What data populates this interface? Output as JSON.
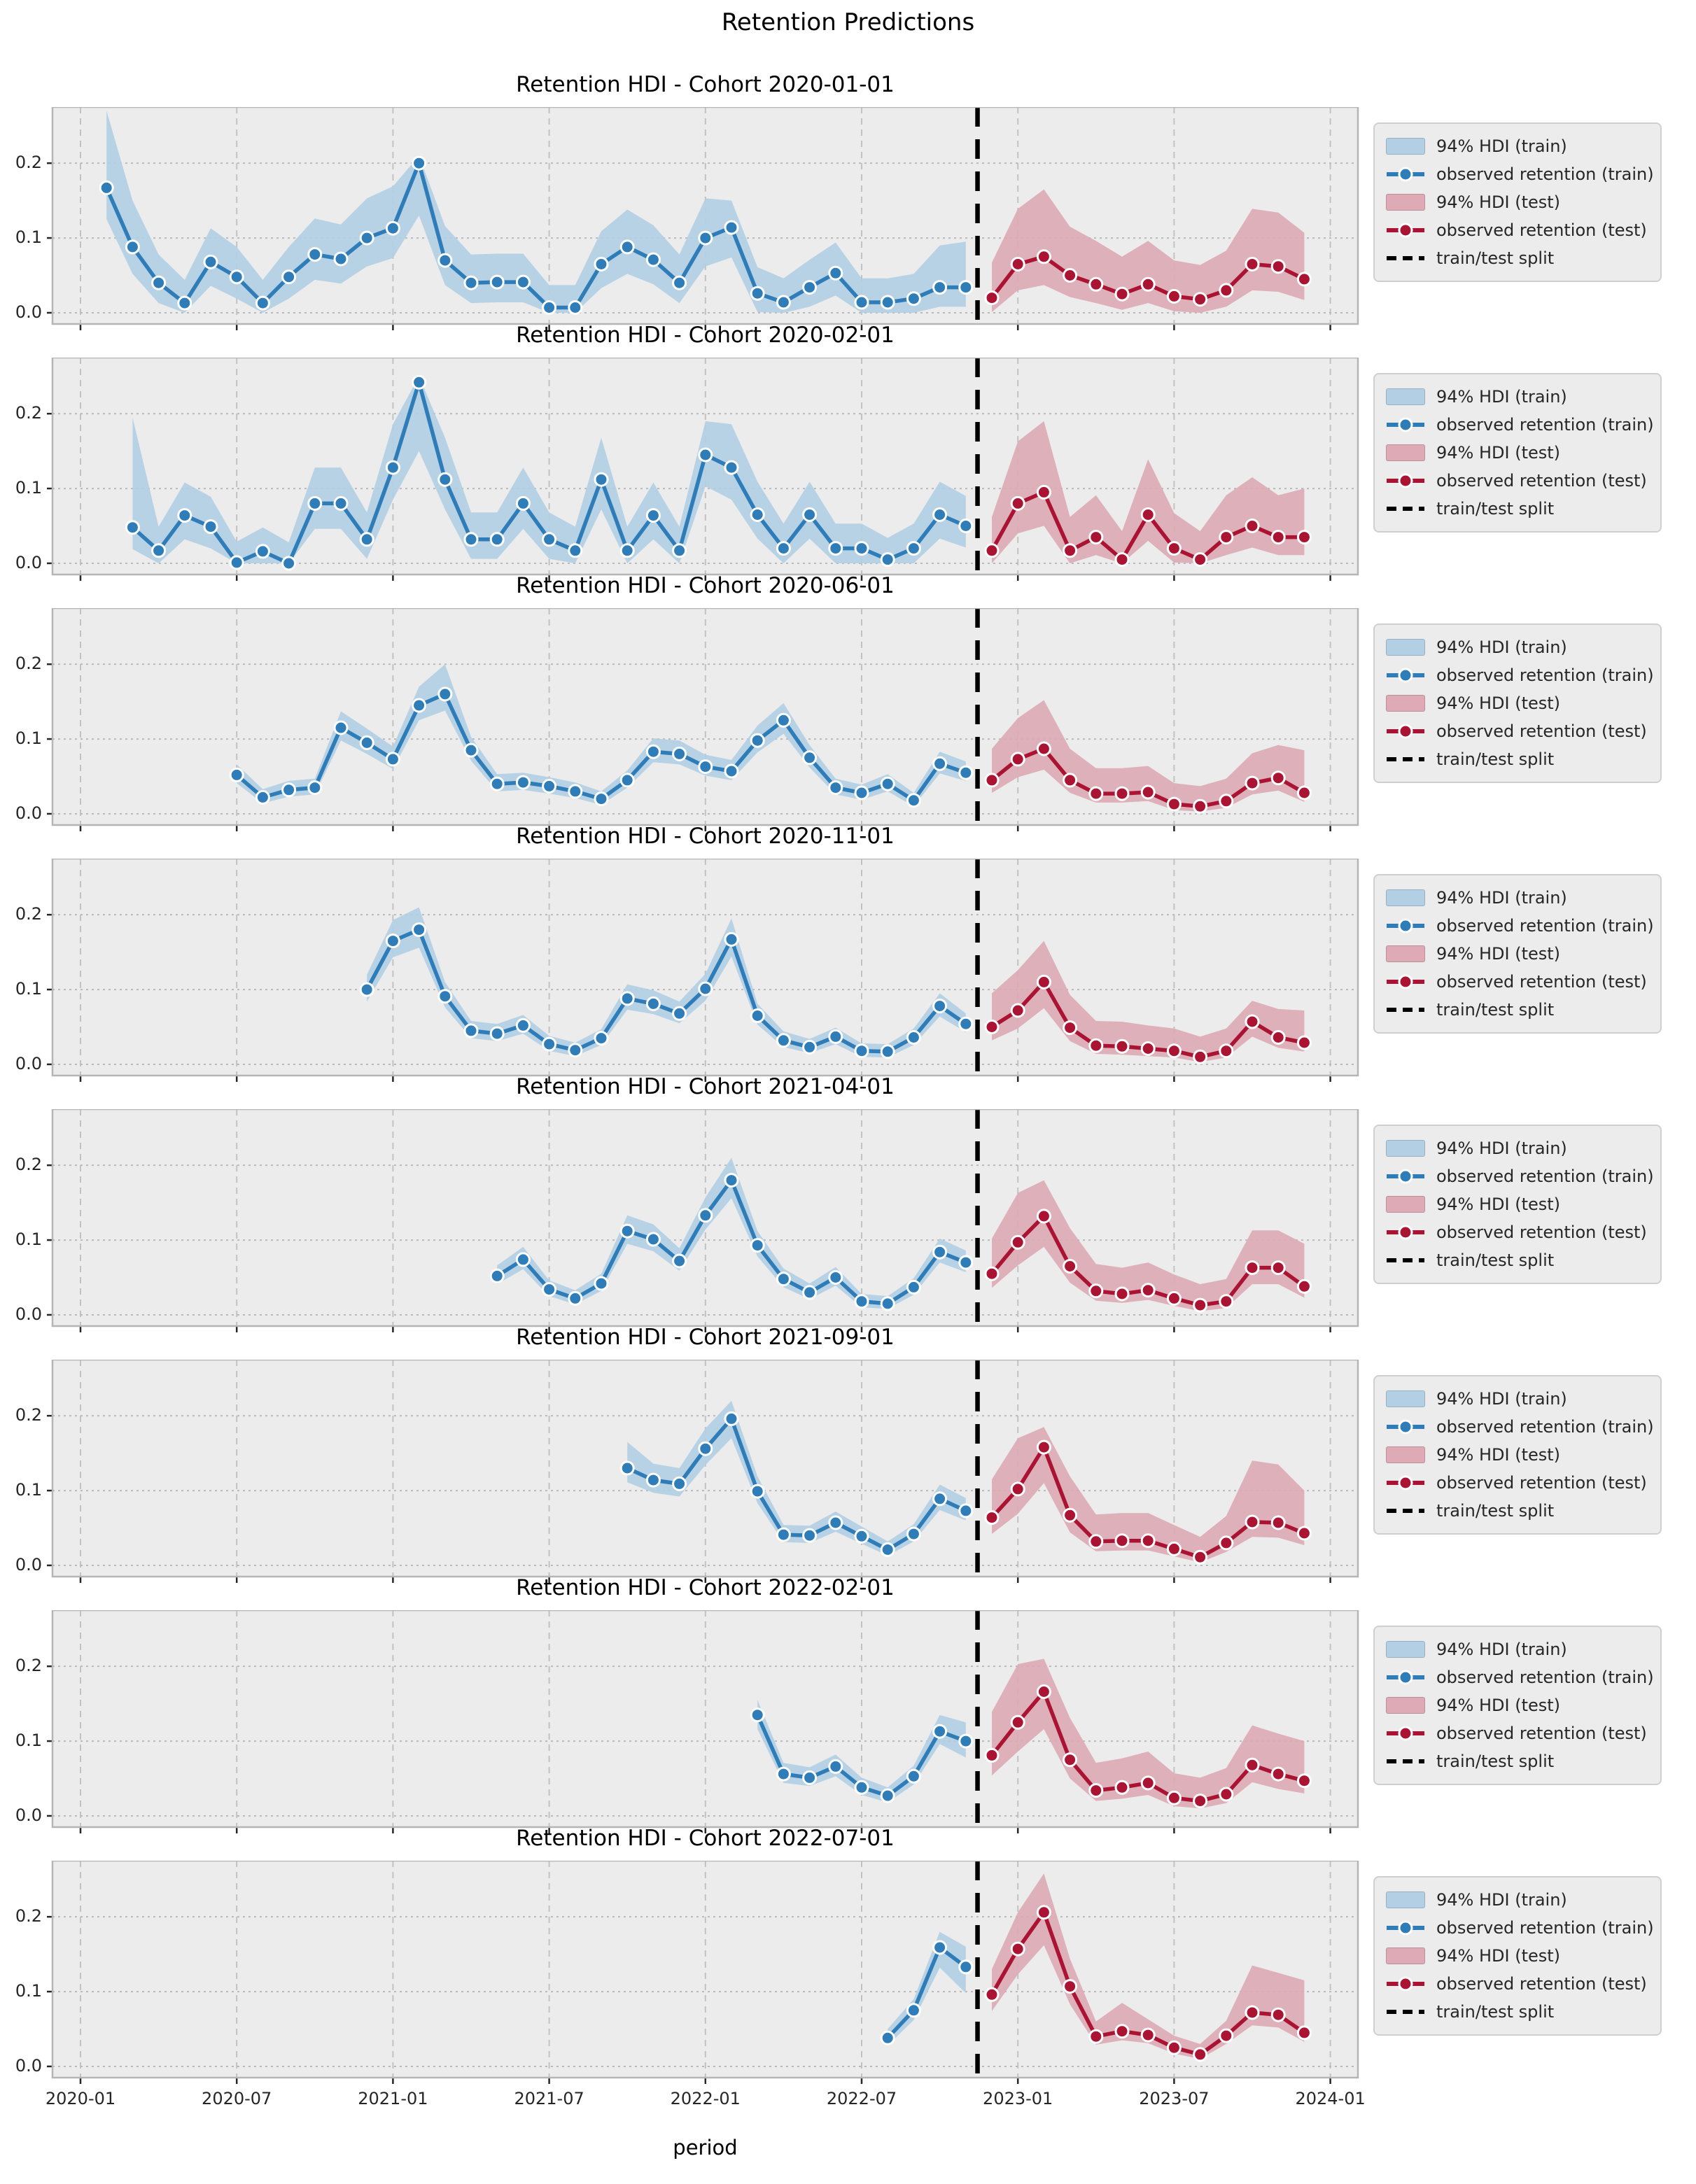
{
  "figure": {
    "suptitle": "Retention Predictions",
    "xlabel": "period",
    "axes": {
      "x_tick_labels": [
        "2020-01",
        "2020-07",
        "2021-01",
        "2021-07",
        "2022-01",
        "2022-07",
        "2023-01",
        "2023-07",
        "2024-01"
      ],
      "y_tick_labels": [
        "0.0",
        "0.1",
        "0.2"
      ],
      "y_tick_values": [
        0.0,
        0.1,
        0.2
      ],
      "ylim": [
        -0.015,
        0.275
      ],
      "grid": true,
      "background": "#ececec"
    },
    "legend_items": [
      {
        "label": "94% HDI (train)",
        "swatch": "band-train"
      },
      {
        "label": "observed retention (train)",
        "swatch": "line-train"
      },
      {
        "label": "94% HDI (test)",
        "swatch": "band-test"
      },
      {
        "label": "observed retention (test)",
        "swatch": "line-test"
      },
      {
        "label": "train/test split",
        "swatch": "dashed-split"
      }
    ],
    "colors": {
      "train_line": "#2e7cb8",
      "train_band": "#b3cfe4",
      "test_line": "#ab1332",
      "test_band": "#ddaab5",
      "split_line": "#000000",
      "grid_line": "#c2c2c2",
      "axes_background": "#ececec"
    }
  },
  "chart_data": [
    {
      "type": "line",
      "title": "Retention HDI - Cohort 2020-01-01",
      "cohort": "2020-01-01",
      "split_between": [
        "2022-11",
        "2022-12"
      ],
      "train": {
        "start": "2020-02",
        "retention": [
          0.167,
          0.088,
          0.04,
          0.013,
          0.068,
          0.048,
          0.013,
          0.048,
          0.078,
          0.072,
          0.1,
          0.113,
          0.2,
          0.07,
          0.04,
          0.041,
          0.041,
          0.007,
          0.007,
          0.065,
          0.088,
          0.071,
          0.04,
          0.1,
          0.114,
          0.026,
          0.014,
          0.034,
          0.053,
          0.014,
          0.014,
          0.019,
          0.034,
          0.034
        ],
        "hdi_upper": [
          0.27,
          0.15,
          0.078,
          0.044,
          0.113,
          0.088,
          0.044,
          0.088,
          0.126,
          0.118,
          0.153,
          0.169,
          0.21,
          0.116,
          0.078,
          0.079,
          0.079,
          0.037,
          0.037,
          0.109,
          0.138,
          0.117,
          0.078,
          0.153,
          0.15,
          0.061,
          0.046,
          0.071,
          0.094,
          0.046,
          0.046,
          0.052,
          0.09,
          0.095
        ],
        "hdi_lower": [
          0.125,
          0.052,
          0.013,
          0.0,
          0.036,
          0.019,
          0.0,
          0.019,
          0.044,
          0.039,
          0.062,
          0.073,
          0.13,
          0.037,
          0.013,
          0.014,
          0.014,
          0.0,
          0.0,
          0.033,
          0.052,
          0.038,
          0.013,
          0.062,
          0.074,
          0.001,
          0.0,
          0.008,
          0.023,
          0.0,
          0.0,
          0.0,
          0.008,
          0.008
        ]
      },
      "test": {
        "start": "2022-12",
        "retention": [
          0.02,
          0.065,
          0.075,
          0.05,
          0.038,
          0.025,
          0.038,
          0.022,
          0.018,
          0.03,
          0.065,
          0.062,
          0.045
        ],
        "hdi_upper": [
          0.067,
          0.139,
          0.165,
          0.115,
          0.096,
          0.075,
          0.096,
          0.07,
          0.064,
          0.083,
          0.139,
          0.134,
          0.107
        ],
        "hdi_lower": [
          0.001,
          0.03,
          0.037,
          0.021,
          0.013,
          0.004,
          0.013,
          0.002,
          0.0,
          0.008,
          0.03,
          0.028,
          0.017
        ]
      }
    },
    {
      "type": "line",
      "title": "Retention HDI - Cohort 2020-02-01",
      "cohort": "2020-02-01",
      "split_between": [
        "2022-11",
        "2022-12"
      ],
      "train": {
        "start": "2020-03",
        "retention": [
          0.048,
          0.017,
          0.064,
          0.049,
          0.001,
          0.016,
          0.0,
          0.08,
          0.08,
          0.032,
          0.128,
          0.242,
          0.112,
          0.032,
          0.032,
          0.08,
          0.032,
          0.017,
          0.112,
          0.017,
          0.064,
          0.017,
          0.145,
          0.128,
          0.065,
          0.02,
          0.065,
          0.02,
          0.02,
          0.005,
          0.02,
          0.065,
          0.05
        ],
        "hdi_upper": [
          0.195,
          0.049,
          0.108,
          0.089,
          0.029,
          0.048,
          0.028,
          0.128,
          0.128,
          0.068,
          0.186,
          0.25,
          0.168,
          0.068,
          0.068,
          0.128,
          0.068,
          0.049,
          0.168,
          0.049,
          0.108,
          0.049,
          0.19,
          0.186,
          0.109,
          0.053,
          0.109,
          0.053,
          0.053,
          0.034,
          0.053,
          0.109,
          0.09
        ],
        "hdi_lower": [
          0.019,
          0.0,
          0.032,
          0.02,
          0.0,
          0.0,
          0.0,
          0.046,
          0.046,
          0.006,
          0.085,
          0.15,
          0.072,
          0.006,
          0.006,
          0.046,
          0.006,
          0.0,
          0.072,
          0.0,
          0.032,
          0.0,
          0.103,
          0.085,
          0.033,
          0.0,
          0.033,
          0.0,
          0.0,
          0.0,
          0.0,
          0.033,
          0.021
        ]
      },
      "test": {
        "start": "2022-12",
        "retention": [
          0.017,
          0.08,
          0.095,
          0.017,
          0.035,
          0.005,
          0.065,
          0.02,
          0.005,
          0.035,
          0.05,
          0.035,
          0.035
        ],
        "hdi_upper": [
          0.062,
          0.163,
          0.19,
          0.062,
          0.091,
          0.043,
          0.139,
          0.067,
          0.043,
          0.091,
          0.115,
          0.091,
          0.1
        ],
        "hdi_lower": [
          0.0,
          0.04,
          0.05,
          0.0,
          0.011,
          0.0,
          0.03,
          0.001,
          0.0,
          0.011,
          0.021,
          0.011,
          0.011
        ]
      }
    },
    {
      "type": "line",
      "title": "Retention HDI - Cohort 2020-06-01",
      "cohort": "2020-06-01",
      "split_between": [
        "2022-11",
        "2022-12"
      ],
      "train": {
        "start": "2020-07",
        "retention": [
          0.052,
          0.022,
          0.032,
          0.035,
          0.115,
          0.095,
          0.073,
          0.145,
          0.16,
          0.085,
          0.04,
          0.042,
          0.037,
          0.03,
          0.02,
          0.045,
          0.083,
          0.08,
          0.063,
          0.057,
          0.098,
          0.125,
          0.075,
          0.035,
          0.028,
          0.04,
          0.018,
          0.067,
          0.055
        ],
        "hdi_upper": [
          0.066,
          0.033,
          0.044,
          0.047,
          0.137,
          0.114,
          0.09,
          0.17,
          0.2,
          0.103,
          0.053,
          0.055,
          0.049,
          0.042,
          0.03,
          0.058,
          0.101,
          0.098,
          0.079,
          0.072,
          0.118,
          0.148,
          0.092,
          0.047,
          0.039,
          0.053,
          0.028,
          0.083,
          0.07
        ],
        "hdi_lower": [
          0.041,
          0.014,
          0.023,
          0.026,
          0.098,
          0.08,
          0.06,
          0.125,
          0.138,
          0.071,
          0.03,
          0.032,
          0.027,
          0.021,
          0.012,
          0.035,
          0.069,
          0.066,
          0.051,
          0.045,
          0.082,
          0.107,
          0.062,
          0.026,
          0.019,
          0.03,
          0.01,
          0.054,
          0.044
        ]
      },
      "test": {
        "start": "2022-12",
        "retention": [
          0.045,
          0.073,
          0.087,
          0.045,
          0.027,
          0.027,
          0.029,
          0.013,
          0.01,
          0.017,
          0.041,
          0.048,
          0.028
        ],
        "hdi_upper": [
          0.087,
          0.128,
          0.152,
          0.087,
          0.061,
          0.061,
          0.064,
          0.041,
          0.037,
          0.047,
          0.081,
          0.092,
          0.085
        ],
        "hdi_lower": [
          0.028,
          0.049,
          0.059,
          0.028,
          0.015,
          0.015,
          0.017,
          0.005,
          0.003,
          0.008,
          0.026,
          0.031,
          0.016
        ]
      }
    },
    {
      "type": "line",
      "title": "Retention HDI - Cohort 2020-11-01",
      "cohort": "2020-11-01",
      "split_between": [
        "2022-11",
        "2022-12"
      ],
      "train": {
        "start": "2020-12",
        "retention": [
          0.1,
          0.165,
          0.18,
          0.091,
          0.045,
          0.041,
          0.052,
          0.027,
          0.019,
          0.035,
          0.088,
          0.081,
          0.068,
          0.101,
          0.167,
          0.065,
          0.032,
          0.023,
          0.037,
          0.018,
          0.017,
          0.036,
          0.078,
          0.054
        ],
        "hdi_upper": [
          0.12,
          0.193,
          0.21,
          0.11,
          0.058,
          0.054,
          0.066,
          0.038,
          0.029,
          0.047,
          0.107,
          0.099,
          0.084,
          0.121,
          0.195,
          0.081,
          0.044,
          0.034,
          0.049,
          0.028,
          0.027,
          0.048,
          0.095,
          0.068
        ],
        "hdi_lower": [
          0.084,
          0.143,
          0.156,
          0.076,
          0.035,
          0.031,
          0.041,
          0.018,
          0.011,
          0.026,
          0.073,
          0.067,
          0.055,
          0.085,
          0.144,
          0.053,
          0.023,
          0.015,
          0.027,
          0.01,
          0.009,
          0.026,
          0.064,
          0.043
        ]
      },
      "test": {
        "start": "2022-12",
        "retention": [
          0.05,
          0.072,
          0.11,
          0.049,
          0.025,
          0.024,
          0.021,
          0.018,
          0.01,
          0.018,
          0.057,
          0.036,
          0.029
        ],
        "hdi_upper": [
          0.095,
          0.126,
          0.165,
          0.093,
          0.058,
          0.057,
          0.052,
          0.048,
          0.037,
          0.048,
          0.085,
          0.074,
          0.072
        ],
        "hdi_lower": [
          0.032,
          0.048,
          0.075,
          0.031,
          0.014,
          0.013,
          0.011,
          0.009,
          0.003,
          0.009,
          0.037,
          0.022,
          0.017
        ]
      }
    },
    {
      "type": "line",
      "title": "Retention HDI - Cohort 2021-04-01",
      "cohort": "2021-04-01",
      "split_between": [
        "2022-11",
        "2022-12"
      ],
      "train": {
        "start": "2021-05",
        "retention": [
          0.052,
          0.074,
          0.034,
          0.022,
          0.042,
          0.112,
          0.101,
          0.072,
          0.133,
          0.18,
          0.093,
          0.048,
          0.03,
          0.05,
          0.018,
          0.015,
          0.037,
          0.084,
          0.07
        ],
        "hdi_upper": [
          0.066,
          0.091,
          0.046,
          0.033,
          0.055,
          0.133,
          0.121,
          0.089,
          0.157,
          0.21,
          0.112,
          0.062,
          0.042,
          0.064,
          0.028,
          0.025,
          0.049,
          0.102,
          0.086
        ],
        "hdi_lower": [
          0.041,
          0.061,
          0.025,
          0.014,
          0.032,
          0.095,
          0.085,
          0.059,
          0.114,
          0.156,
          0.078,
          0.037,
          0.021,
          0.039,
          0.01,
          0.008,
          0.027,
          0.07,
          0.057
        ]
      },
      "test": {
        "start": "2022-12",
        "retention": [
          0.055,
          0.097,
          0.132,
          0.065,
          0.032,
          0.028,
          0.033,
          0.022,
          0.013,
          0.018,
          0.063,
          0.063,
          0.038
        ],
        "hdi_upper": [
          0.102,
          0.163,
          0.18,
          0.116,
          0.068,
          0.063,
          0.07,
          0.054,
          0.041,
          0.048,
          0.113,
          0.113,
          0.095
        ],
        "hdi_lower": [
          0.036,
          0.066,
          0.091,
          0.043,
          0.019,
          0.016,
          0.02,
          0.012,
          0.005,
          0.009,
          0.041,
          0.041,
          0.023
        ]
      }
    },
    {
      "type": "line",
      "title": "Retention HDI - Cohort 2021-09-01",
      "cohort": "2021-09-01",
      "split_between": [
        "2022-11",
        "2022-12"
      ],
      "train": {
        "start": "2021-10",
        "retention": [
          0.13,
          0.114,
          0.109,
          0.156,
          0.196,
          0.099,
          0.041,
          0.04,
          0.057,
          0.039,
          0.021,
          0.042,
          0.089,
          0.073
        ],
        "hdi_upper": [
          0.165,
          0.136,
          0.13,
          0.183,
          0.22,
          0.119,
          0.054,
          0.053,
          0.072,
          0.052,
          0.032,
          0.055,
          0.108,
          0.09
        ],
        "hdi_lower": [
          0.111,
          0.097,
          0.092,
          0.134,
          0.17,
          0.083,
          0.031,
          0.03,
          0.045,
          0.029,
          0.013,
          0.032,
          0.074,
          0.06
        ]
      },
      "test": {
        "start": "2022-12",
        "retention": [
          0.064,
          0.102,
          0.158,
          0.067,
          0.032,
          0.033,
          0.033,
          0.022,
          0.011,
          0.03,
          0.058,
          0.057,
          0.043
        ],
        "hdi_upper": [
          0.115,
          0.17,
          0.185,
          0.119,
          0.068,
          0.07,
          0.07,
          0.054,
          0.038,
          0.066,
          0.14,
          0.135,
          0.1
        ],
        "hdi_lower": [
          0.042,
          0.069,
          0.11,
          0.044,
          0.019,
          0.02,
          0.02,
          0.012,
          0.004,
          0.018,
          0.038,
          0.037,
          0.027
        ]
      }
    },
    {
      "type": "line",
      "title": "Retention HDI - Cohort 2022-02-01",
      "cohort": "2022-02-01",
      "split_between": [
        "2022-11",
        "2022-12"
      ],
      "train": {
        "start": "2022-03",
        "retention": [
          0.135,
          0.056,
          0.051,
          0.066,
          0.038,
          0.027,
          0.053,
          0.113,
          0.1
        ],
        "hdi_upper": [
          0.155,
          0.071,
          0.065,
          0.082,
          0.051,
          0.038,
          0.067,
          0.135,
          0.125
        ],
        "hdi_lower": [
          0.116,
          0.044,
          0.04,
          0.053,
          0.028,
          0.018,
          0.042,
          0.096,
          0.078
        ]
      },
      "test": {
        "start": "2022-12",
        "retention": [
          0.081,
          0.125,
          0.166,
          0.075,
          0.034,
          0.038,
          0.044,
          0.024,
          0.02,
          0.029,
          0.068,
          0.056,
          0.047
        ],
        "hdi_upper": [
          0.139,
          0.203,
          0.21,
          0.131,
          0.071,
          0.077,
          0.086,
          0.057,
          0.051,
          0.064,
          0.121,
          0.11,
          0.1
        ],
        "hdi_lower": [
          0.054,
          0.086,
          0.116,
          0.05,
          0.02,
          0.023,
          0.028,
          0.013,
          0.01,
          0.017,
          0.045,
          0.036,
          0.03
        ]
      }
    },
    {
      "type": "line",
      "title": "Retention HDI - Cohort 2022-07-01",
      "cohort": "2022-07-01",
      "split_between": [
        "2022-11",
        "2022-12"
      ],
      "train": {
        "start": "2022-08",
        "retention": [
          0.038,
          0.075,
          0.159,
          0.133
        ],
        "hdi_upper": [
          0.05,
          0.09,
          0.18,
          0.16
        ],
        "hdi_lower": [
          0.028,
          0.062,
          0.132,
          0.098
        ]
      },
      "test": {
        "start": "2022-12",
        "retention": [
          0.096,
          0.157,
          0.206,
          0.107,
          0.04,
          0.047,
          0.042,
          0.025,
          0.016,
          0.041,
          0.072,
          0.069,
          0.045
        ],
        "hdi_upper": [
          0.13,
          0.206,
          0.258,
          0.144,
          0.06,
          0.085,
          0.063,
          0.041,
          0.03,
          0.061,
          0.135,
          0.125,
          0.115
        ],
        "hdi_lower": [
          0.074,
          0.123,
          0.162,
          0.083,
          0.029,
          0.035,
          0.031,
          0.017,
          0.01,
          0.03,
          0.055,
          0.052,
          0.033
        ]
      }
    }
  ]
}
